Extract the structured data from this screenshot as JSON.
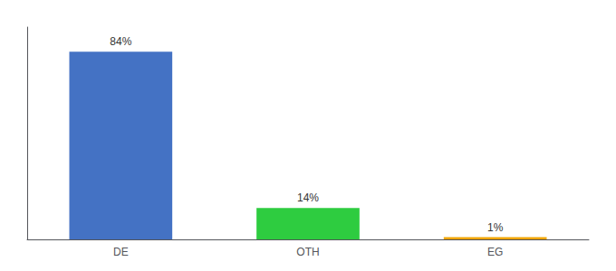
{
  "chart_data": {
    "type": "bar",
    "categories": [
      "DE",
      "OTH",
      "EG"
    ],
    "values": [
      84,
      14,
      1
    ],
    "value_labels": [
      "84%",
      "14%",
      "1%"
    ],
    "colors": [
      "#4472c4",
      "#2ecc40",
      "#f0a500"
    ],
    "ylim": [
      0,
      95
    ],
    "data_labels": true,
    "tick_labels": "x",
    "grid": false
  }
}
